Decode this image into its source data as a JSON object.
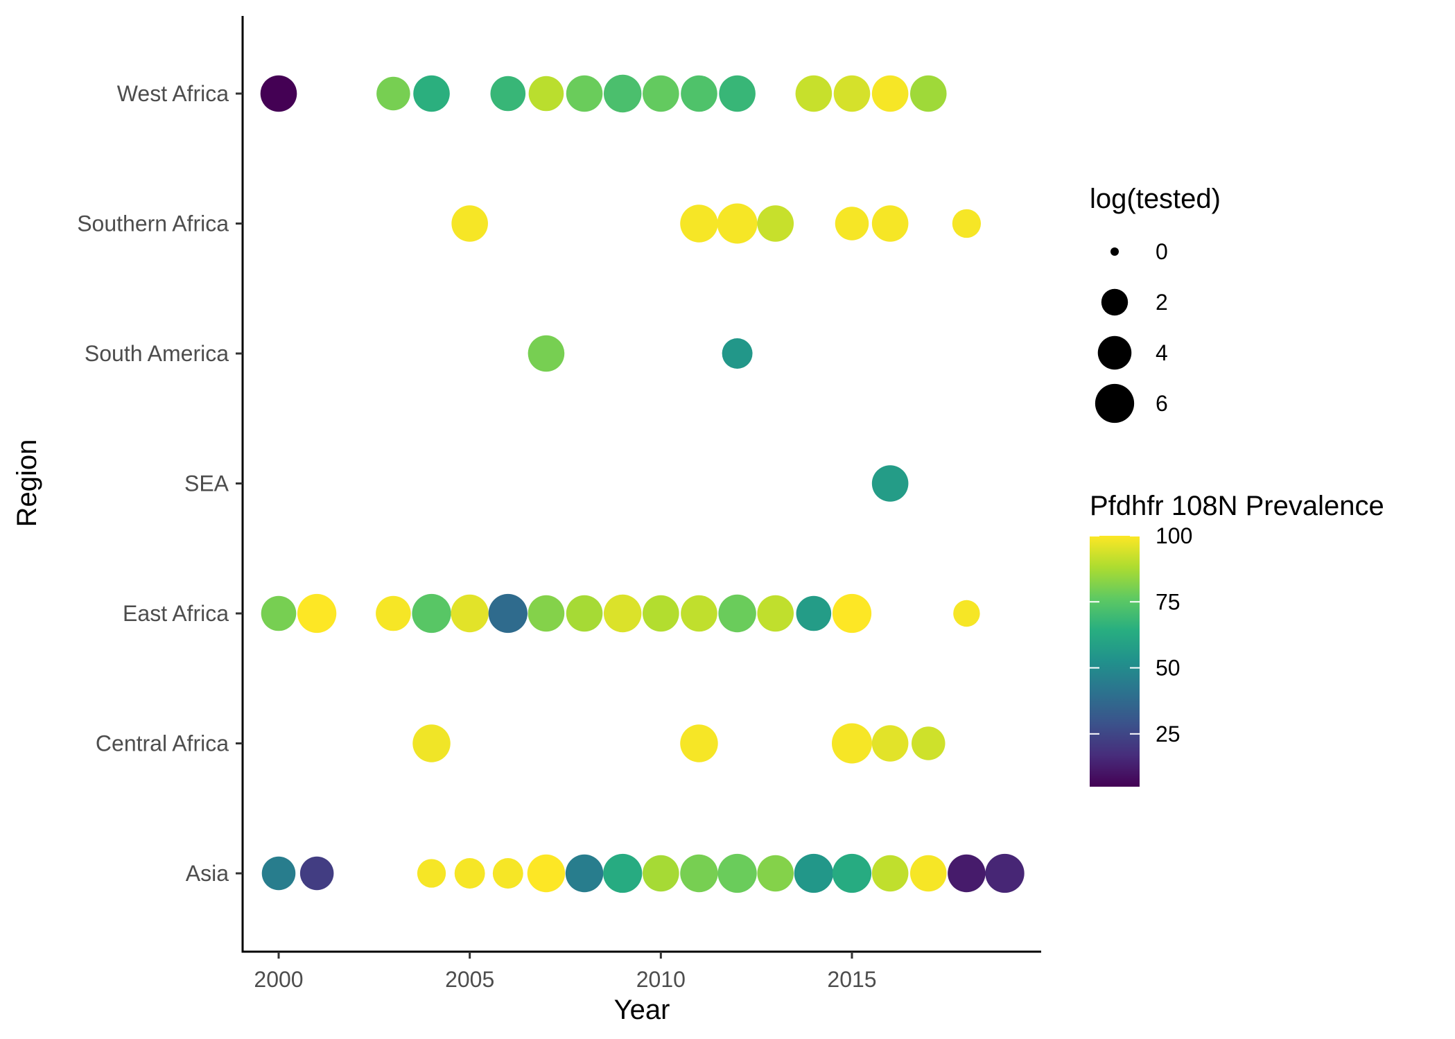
{
  "chart_data": {
    "type": "scatter",
    "xlabel": "Year",
    "ylabel": "Region",
    "xlim": [
      1999.1,
      2019.9
    ],
    "x_ticks": [
      2000,
      2005,
      2010,
      2015
    ],
    "categories": [
      "Asia",
      "Central Africa",
      "East Africa",
      "SEA",
      "South America",
      "Southern Africa",
      "West Africa"
    ],
    "grid": false,
    "legend_position": "right",
    "size_legend": {
      "title": "log(tested)",
      "values": [
        0,
        2,
        4,
        6
      ]
    },
    "color_legend": {
      "title": "Pfdhfr 108N Prevalence",
      "ticks": [
        25,
        50,
        75,
        100
      ],
      "range": [
        5,
        100
      ],
      "colormap": "viridis"
    },
    "points": [
      {
        "region": "West Africa",
        "year": 2000,
        "prevalence": 5,
        "log_tested": 5
      },
      {
        "region": "West Africa",
        "year": 2003,
        "prevalence": 80,
        "log_tested": 4
      },
      {
        "region": "West Africa",
        "year": 2004,
        "prevalence": 65,
        "log_tested": 5
      },
      {
        "region": "West Africa",
        "year": 2006,
        "prevalence": 68,
        "log_tested": 4.5
      },
      {
        "region": "West Africa",
        "year": 2007,
        "prevalence": 90,
        "log_tested": 4.5
      },
      {
        "region": "West Africa",
        "year": 2008,
        "prevalence": 78,
        "log_tested": 5
      },
      {
        "region": "West Africa",
        "year": 2009,
        "prevalence": 72,
        "log_tested": 5.5
      },
      {
        "region": "West Africa",
        "year": 2010,
        "prevalence": 77,
        "log_tested": 5
      },
      {
        "region": "West Africa",
        "year": 2011,
        "prevalence": 73,
        "log_tested": 5
      },
      {
        "region": "West Africa",
        "year": 2012,
        "prevalence": 68,
        "log_tested": 5
      },
      {
        "region": "West Africa",
        "year": 2014,
        "prevalence": 92,
        "log_tested": 5
      },
      {
        "region": "West Africa",
        "year": 2015,
        "prevalence": 94,
        "log_tested": 5
      },
      {
        "region": "West Africa",
        "year": 2016,
        "prevalence": 99,
        "log_tested": 5
      },
      {
        "region": "West Africa",
        "year": 2017,
        "prevalence": 86,
        "log_tested": 5
      },
      {
        "region": "Southern Africa",
        "year": 2005,
        "prevalence": 99,
        "log_tested": 5
      },
      {
        "region": "Southern Africa",
        "year": 2011,
        "prevalence": 99,
        "log_tested": 5.5
      },
      {
        "region": "Southern Africa",
        "year": 2012,
        "prevalence": 99,
        "log_tested": 6.5
      },
      {
        "region": "Southern Africa",
        "year": 2013,
        "prevalence": 92,
        "log_tested": 5
      },
      {
        "region": "Southern Africa",
        "year": 2015,
        "prevalence": 99,
        "log_tested": 4
      },
      {
        "region": "Southern Africa",
        "year": 2016,
        "prevalence": 99,
        "log_tested": 5
      },
      {
        "region": "Southern Africa",
        "year": 2018,
        "prevalence": 99,
        "log_tested": 2.5
      },
      {
        "region": "South America",
        "year": 2007,
        "prevalence": 80,
        "log_tested": 5
      },
      {
        "region": "South America",
        "year": 2012,
        "prevalence": 55,
        "log_tested": 3
      },
      {
        "region": "SEA",
        "year": 2016,
        "prevalence": 57,
        "log_tested": 5
      },
      {
        "region": "East Africa",
        "year": 2000,
        "prevalence": 80,
        "log_tested": 4.5
      },
      {
        "region": "East Africa",
        "year": 2001,
        "prevalence": 100,
        "log_tested": 6
      },
      {
        "region": "East Africa",
        "year": 2003,
        "prevalence": 99,
        "log_tested": 4.5
      },
      {
        "region": "East Africa",
        "year": 2004,
        "prevalence": 75,
        "log_tested": 6
      },
      {
        "region": "East Africa",
        "year": 2005,
        "prevalence": 96,
        "log_tested": 5.5
      },
      {
        "region": "East Africa",
        "year": 2006,
        "prevalence": 38,
        "log_tested": 6
      },
      {
        "region": "East Africa",
        "year": 2007,
        "prevalence": 82,
        "log_tested": 5
      },
      {
        "region": "East Africa",
        "year": 2008,
        "prevalence": 87,
        "log_tested": 5
      },
      {
        "region": "East Africa",
        "year": 2009,
        "prevalence": 95,
        "log_tested": 5.5
      },
      {
        "region": "East Africa",
        "year": 2010,
        "prevalence": 89,
        "log_tested": 5
      },
      {
        "region": "East Africa",
        "year": 2011,
        "prevalence": 91,
        "log_tested": 5
      },
      {
        "region": "East Africa",
        "year": 2012,
        "prevalence": 78,
        "log_tested": 5.5
      },
      {
        "region": "East Africa",
        "year": 2013,
        "prevalence": 91,
        "log_tested": 5
      },
      {
        "region": "East Africa",
        "year": 2014,
        "prevalence": 57,
        "log_tested": 4.5
      },
      {
        "region": "East Africa",
        "year": 2015,
        "prevalence": 100,
        "log_tested": 6
      },
      {
        "region": "East Africa",
        "year": 2018,
        "prevalence": 99,
        "log_tested": 2
      },
      {
        "region": "Central Africa",
        "year": 2004,
        "prevalence": 98,
        "log_tested": 5.5
      },
      {
        "region": "Central Africa",
        "year": 2011,
        "prevalence": 99,
        "log_tested": 5.5
      },
      {
        "region": "Central Africa",
        "year": 2015,
        "prevalence": 99,
        "log_tested": 6.5
      },
      {
        "region": "Central Africa",
        "year": 2016,
        "prevalence": 96,
        "log_tested": 5
      },
      {
        "region": "Central Africa",
        "year": 2017,
        "prevalence": 93,
        "log_tested": 4
      },
      {
        "region": "Asia",
        "year": 2000,
        "prevalence": 45,
        "log_tested": 4
      },
      {
        "region": "Asia",
        "year": 2001,
        "prevalence": 22,
        "log_tested": 4
      },
      {
        "region": "Asia",
        "year": 2004,
        "prevalence": 99,
        "log_tested": 2.5
      },
      {
        "region": "Asia",
        "year": 2005,
        "prevalence": 99,
        "log_tested": 3
      },
      {
        "region": "Asia",
        "year": 2006,
        "prevalence": 99,
        "log_tested": 3
      },
      {
        "region": "Asia",
        "year": 2007,
        "prevalence": 100,
        "log_tested": 5.5
      },
      {
        "region": "Asia",
        "year": 2008,
        "prevalence": 45,
        "log_tested": 5.5
      },
      {
        "region": "Asia",
        "year": 2009,
        "prevalence": 63,
        "log_tested": 6
      },
      {
        "region": "Asia",
        "year": 2010,
        "prevalence": 87,
        "log_tested": 5
      },
      {
        "region": "Asia",
        "year": 2011,
        "prevalence": 80,
        "log_tested": 5.5
      },
      {
        "region": "Asia",
        "year": 2012,
        "prevalence": 78,
        "log_tested": 6
      },
      {
        "region": "Asia",
        "year": 2013,
        "prevalence": 82,
        "log_tested": 5
      },
      {
        "region": "Asia",
        "year": 2014,
        "prevalence": 55,
        "log_tested": 6
      },
      {
        "region": "Asia",
        "year": 2015,
        "prevalence": 63,
        "log_tested": 6
      },
      {
        "region": "Asia",
        "year": 2016,
        "prevalence": 91,
        "log_tested": 5
      },
      {
        "region": "Asia",
        "year": 2017,
        "prevalence": 99,
        "log_tested": 5
      },
      {
        "region": "Asia",
        "year": 2018,
        "prevalence": 12,
        "log_tested": 5.5
      },
      {
        "region": "Asia",
        "year": 2019,
        "prevalence": 15,
        "log_tested": 6
      }
    ]
  }
}
